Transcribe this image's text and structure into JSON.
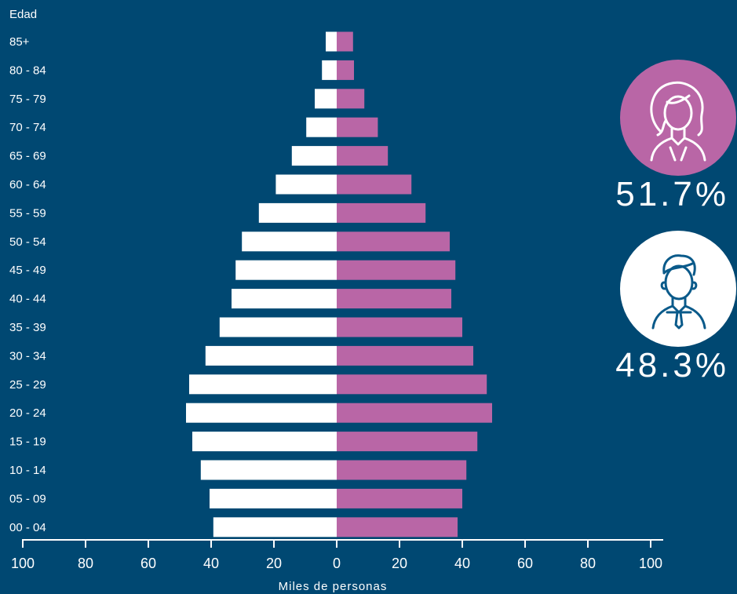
{
  "colors": {
    "background": "#004872",
    "male": "#ffffff",
    "female": "#b966a6",
    "male_icon_stroke": "#0a5a8a"
  },
  "icons": {
    "female": "woman-avatar-icon",
    "male": "man-avatar-icon"
  },
  "chart_data": {
    "type": "bar",
    "orientation": "horizontal-population-pyramid",
    "y_axis_label": "Edad",
    "x_axis_label": "Miles de personas",
    "xlim": [
      -100,
      100
    ],
    "x_ticks": [
      "100",
      "80",
      "60",
      "40",
      "20",
      "0",
      "20",
      "40",
      "60",
      "80",
      "100"
    ],
    "categories": [
      "85+",
      "80 - 84",
      "75 - 79",
      "70 - 74",
      "65 - 69",
      "60 - 64",
      "55 - 59",
      "50 - 54",
      "45 - 49",
      "40 - 44",
      "35 - 39",
      "30 - 34",
      "25 - 29",
      "20 - 24",
      "15 - 19",
      "10 - 14",
      "05 - 09",
      "00 - 04"
    ],
    "series": [
      {
        "key": "male",
        "values": [
          3.5,
          4.7,
          7,
          9.7,
          14.3,
          19.4,
          24.8,
          30.2,
          32.2,
          33.5,
          37.3,
          41.8,
          47,
          48,
          46,
          43.3,
          40.5,
          39.3
        ]
      },
      {
        "key": "female",
        "values": [
          5.2,
          5.5,
          8.8,
          13.1,
          16.3,
          23.8,
          28.3,
          36,
          37.8,
          36.5,
          40,
          43.5,
          47.8,
          49.5,
          44.8,
          41.3,
          40,
          38.5
        ]
      }
    ]
  },
  "legend": {
    "female_pct": "51.7%",
    "male_pct": "48.3%"
  }
}
